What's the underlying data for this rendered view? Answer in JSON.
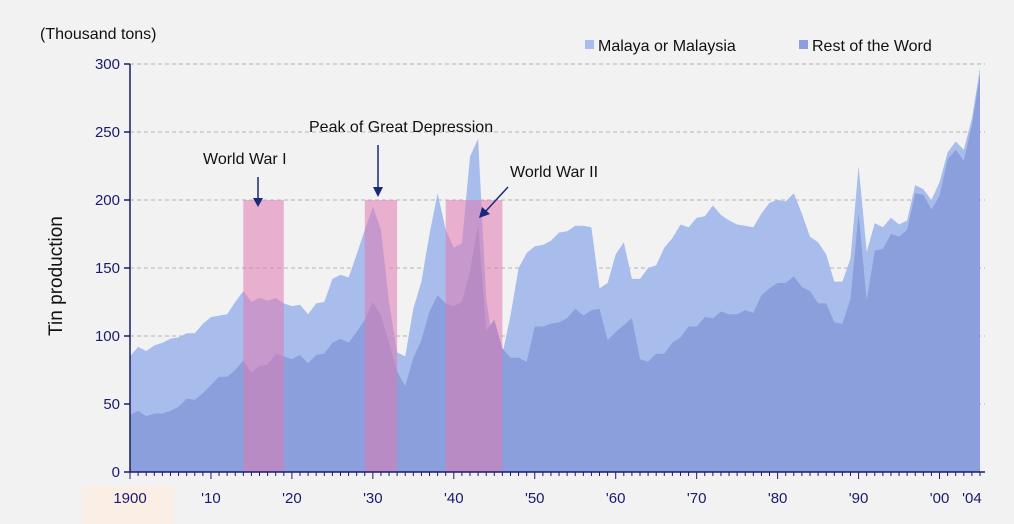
{
  "chart_data": {
    "type": "area",
    "ylabel": "Tin production",
    "unit_label": "(Thousand tons)",
    "ylim": [
      0,
      300
    ],
    "yticks": [
      0,
      50,
      100,
      150,
      200,
      250,
      300
    ],
    "xlim": [
      1900,
      2004
    ],
    "xticks": [
      {
        "x": 1900,
        "label": "1900"
      },
      {
        "x": 1910,
        "label": "'10"
      },
      {
        "x": 1920,
        "label": "'20"
      },
      {
        "x": 1930,
        "label": "'30"
      },
      {
        "x": 1940,
        "label": "'40"
      },
      {
        "x": 1950,
        "label": "'50"
      },
      {
        "x": 1960,
        "label": "'60"
      },
      {
        "x": 1970,
        "label": "'70"
      },
      {
        "x": 1980,
        "label": "'80"
      },
      {
        "x": 1990,
        "label": "'90"
      },
      {
        "x": 2000,
        "label": "'00"
      },
      {
        "x": 2004,
        "label": "'04"
      }
    ],
    "grid": "horizontal dashed",
    "legend_position": "top-right",
    "series": [
      {
        "name": "Malaya or Malaysia",
        "color": "#a9bdec",
        "points": [
          [
            1900,
            85
          ],
          [
            1901,
            92
          ],
          [
            1902,
            89
          ],
          [
            1903,
            93
          ],
          [
            1904,
            95
          ],
          [
            1905,
            98
          ],
          [
            1906,
            99
          ],
          [
            1907,
            102
          ],
          [
            1908,
            102
          ],
          [
            1909,
            109
          ],
          [
            1910,
            114
          ],
          [
            1911,
            115
          ],
          [
            1912,
            116
          ],
          [
            1913,
            125
          ],
          [
            1914,
            133
          ],
          [
            1915,
            125
          ],
          [
            1916,
            128
          ],
          [
            1917,
            126
          ],
          [
            1918,
            128
          ],
          [
            1919,
            124
          ],
          [
            1920,
            122
          ],
          [
            1921,
            123
          ],
          [
            1922,
            116
          ],
          [
            1923,
            124
          ],
          [
            1924,
            125
          ],
          [
            1925,
            142
          ],
          [
            1926,
            145
          ],
          [
            1927,
            143
          ],
          [
            1928,
            160
          ],
          [
            1929,
            178
          ],
          [
            1930,
            195
          ],
          [
            1931,
            178
          ],
          [
            1932,
            125
          ],
          [
            1933,
            88
          ],
          [
            1934,
            85
          ],
          [
            1935,
            120
          ],
          [
            1936,
            140
          ],
          [
            1937,
            175
          ],
          [
            1938,
            205
          ],
          [
            1939,
            178
          ],
          [
            1940,
            165
          ],
          [
            1941,
            168
          ],
          [
            1942,
            232
          ],
          [
            1943,
            245
          ],
          [
            1944,
            128
          ],
          [
            1945,
            86
          ],
          [
            1946,
            87
          ],
          [
            1947,
            115
          ],
          [
            1948,
            150
          ],
          [
            1949,
            161
          ],
          [
            1950,
            166
          ],
          [
            1951,
            167
          ],
          [
            1952,
            170
          ],
          [
            1953,
            176
          ],
          [
            1954,
            177
          ],
          [
            1955,
            181
          ],
          [
            1956,
            181
          ],
          [
            1957,
            180
          ],
          [
            1958,
            135
          ],
          [
            1959,
            139
          ],
          [
            1960,
            160
          ],
          [
            1961,
            169
          ],
          [
            1962,
            142
          ],
          [
            1963,
            142
          ],
          [
            1964,
            150
          ],
          [
            1965,
            152
          ],
          [
            1966,
            165
          ],
          [
            1967,
            172
          ],
          [
            1968,
            182
          ],
          [
            1969,
            180
          ],
          [
            1970,
            187
          ],
          [
            1971,
            188
          ],
          [
            1972,
            196
          ],
          [
            1973,
            189
          ],
          [
            1974,
            185
          ],
          [
            1975,
            182
          ],
          [
            1976,
            181
          ],
          [
            1977,
            180
          ],
          [
            1978,
            190
          ],
          [
            1979,
            198
          ],
          [
            1980,
            200
          ],
          [
            1981,
            199
          ],
          [
            1982,
            205
          ],
          [
            1983,
            190
          ],
          [
            1984,
            173
          ],
          [
            1985,
            169
          ],
          [
            1986,
            160
          ],
          [
            1987,
            140
          ],
          [
            1988,
            140
          ],
          [
            1989,
            157
          ],
          [
            1990,
            225
          ],
          [
            1991,
            162
          ],
          [
            1992,
            183
          ],
          [
            1993,
            180
          ],
          [
            1994,
            187
          ],
          [
            1995,
            182
          ],
          [
            1996,
            185
          ],
          [
            1997,
            211
          ],
          [
            1998,
            208
          ],
          [
            1999,
            200
          ],
          [
            2000,
            213
          ],
          [
            2001,
            235
          ],
          [
            2002,
            243
          ],
          [
            2003,
            237
          ],
          [
            2004,
            260
          ],
          [
            2005,
            297
          ]
        ]
      },
      {
        "name": "Rest of the Word",
        "color": "#8a9fdb",
        "points": [
          [
            1900,
            42
          ],
          [
            1901,
            45
          ],
          [
            1902,
            41
          ],
          [
            1903,
            43
          ],
          [
            1904,
            43
          ],
          [
            1905,
            45
          ],
          [
            1906,
            48
          ],
          [
            1907,
            54
          ],
          [
            1908,
            53
          ],
          [
            1909,
            58
          ],
          [
            1910,
            64
          ],
          [
            1911,
            70
          ],
          [
            1912,
            70
          ],
          [
            1913,
            75
          ],
          [
            1914,
            82
          ],
          [
            1915,
            73
          ],
          [
            1916,
            78
          ],
          [
            1917,
            79
          ],
          [
            1918,
            87
          ],
          [
            1919,
            85
          ],
          [
            1920,
            83
          ],
          [
            1921,
            86
          ],
          [
            1922,
            80
          ],
          [
            1923,
            86
          ],
          [
            1924,
            87
          ],
          [
            1925,
            95
          ],
          [
            1926,
            98
          ],
          [
            1927,
            95
          ],
          [
            1928,
            103
          ],
          [
            1929,
            112
          ],
          [
            1930,
            125
          ],
          [
            1931,
            115
          ],
          [
            1932,
            95
          ],
          [
            1933,
            74
          ],
          [
            1934,
            63
          ],
          [
            1935,
            84
          ],
          [
            1936,
            97
          ],
          [
            1937,
            118
          ],
          [
            1938,
            130
          ],
          [
            1939,
            124
          ],
          [
            1940,
            122
          ],
          [
            1941,
            125
          ],
          [
            1942,
            148
          ],
          [
            1943,
            182
          ],
          [
            1944,
            104
          ],
          [
            1945,
            112
          ],
          [
            1946,
            91
          ],
          [
            1947,
            84
          ],
          [
            1948,
            84
          ],
          [
            1949,
            81
          ],
          [
            1950,
            107
          ],
          [
            1951,
            107
          ],
          [
            1952,
            109
          ],
          [
            1953,
            110
          ],
          [
            1954,
            113
          ],
          [
            1955,
            120
          ],
          [
            1956,
            115
          ],
          [
            1957,
            119
          ],
          [
            1958,
            120
          ],
          [
            1959,
            97
          ],
          [
            1960,
            103
          ],
          [
            1961,
            108
          ],
          [
            1962,
            113
          ],
          [
            1963,
            83
          ],
          [
            1964,
            81
          ],
          [
            1965,
            87
          ],
          [
            1966,
            87
          ],
          [
            1967,
            95
          ],
          [
            1968,
            99
          ],
          [
            1969,
            107
          ],
          [
            1970,
            107
          ],
          [
            1971,
            114
          ],
          [
            1972,
            113
          ],
          [
            1973,
            118
          ],
          [
            1974,
            116
          ],
          [
            1975,
            116
          ],
          [
            1976,
            119
          ],
          [
            1977,
            117
          ],
          [
            1978,
            130
          ],
          [
            1979,
            135
          ],
          [
            1980,
            139
          ],
          [
            1981,
            139
          ],
          [
            1982,
            144
          ],
          [
            1983,
            136
          ],
          [
            1984,
            133
          ],
          [
            1985,
            124
          ],
          [
            1986,
            124
          ],
          [
            1987,
            110
          ],
          [
            1988,
            109
          ],
          [
            1989,
            127
          ],
          [
            1990,
            190
          ],
          [
            1991,
            126
          ],
          [
            1992,
            163
          ],
          [
            1993,
            164
          ],
          [
            1994,
            175
          ],
          [
            1995,
            173
          ],
          [
            1996,
            178
          ],
          [
            1997,
            205
          ],
          [
            1998,
            204
          ],
          [
            1999,
            193
          ],
          [
            2000,
            203
          ],
          [
            2001,
            230
          ],
          [
            2002,
            237
          ],
          [
            2003,
            229
          ],
          [
            2004,
            255
          ],
          [
            2005,
            292
          ]
        ]
      }
    ],
    "highlight_periods": [
      {
        "name": "World War I",
        "start": 1914,
        "end": 1919,
        "top": 200
      },
      {
        "name": "Peak of Great Depression",
        "start": 1929,
        "end": 1933,
        "top": 200
      },
      {
        "name": "World War II",
        "start": 1939,
        "end": 1946,
        "top": 200
      }
    ],
    "annotations": [
      "World War I",
      "Peak of Great Depression",
      "World War II"
    ],
    "colors": {
      "band": "#e07ab0",
      "axis": "#1a1a6e",
      "grid": "#b4b4b4"
    }
  }
}
